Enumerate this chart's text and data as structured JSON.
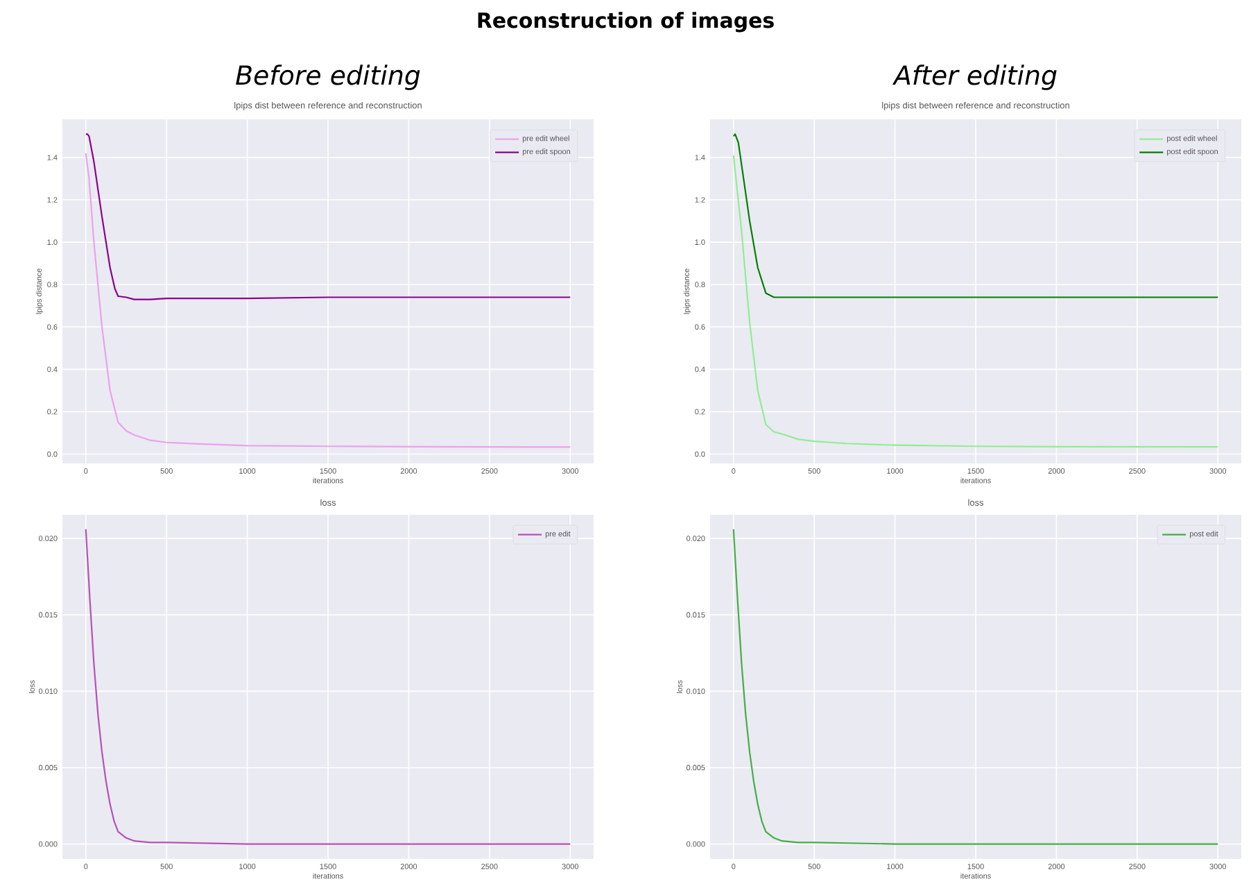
{
  "chart_data": [
    {
      "type": "line",
      "title": "lpips dist between reference and reconstruction",
      "xlabel": "iterations",
      "ylabel": "lpips distance",
      "annotations": [
        "Reconstruction of images",
        "Before editing"
      ],
      "grid": true,
      "legend": "top right",
      "xlim": [
        -145,
        3145
      ],
      "ylim": [
        -0.044,
        1.58
      ],
      "xticks": [
        0,
        500,
        1000,
        1500,
        2000,
        2500,
        3000
      ],
      "yticks": [
        {
          "value": 0,
          "label": "0.0"
        },
        {
          "value": 0.2,
          "label": "0.2"
        },
        {
          "value": 0.4,
          "label": "0.4"
        },
        {
          "value": 0.6,
          "label": "0.6"
        },
        {
          "value": 0.8,
          "label": "0.8"
        },
        {
          "value": 1.0,
          "label": "1.0"
        },
        {
          "value": 1.2,
          "label": "1.2"
        },
        {
          "value": 1.4,
          "label": "1.4"
        }
      ],
      "series": [
        {
          "name": "pre edit wheel",
          "color": "#eaa2ea",
          "x": [
            0,
            20,
            50,
            100,
            150,
            200,
            250,
            300,
            400,
            500,
            700,
            1000,
            1500,
            2000,
            2500,
            3000
          ],
          "values": [
            1.42,
            1.3,
            1.0,
            0.6,
            0.3,
            0.15,
            0.11,
            0.09,
            0.065,
            0.055,
            0.048,
            0.04,
            0.037,
            0.035,
            0.034,
            0.033
          ]
        },
        {
          "name": "pre edit spoon",
          "color": "#8b008b",
          "x": [
            0,
            10,
            20,
            50,
            100,
            150,
            180,
            200,
            250,
            300,
            400,
            500,
            1000,
            1500,
            2000,
            2500,
            3000
          ],
          "values": [
            1.51,
            1.51,
            1.5,
            1.38,
            1.12,
            0.88,
            0.78,
            0.745,
            0.74,
            0.73,
            0.73,
            0.735,
            0.735,
            0.74,
            0.74,
            0.74,
            0.74
          ]
        }
      ]
    },
    {
      "type": "line",
      "title": "lpips dist between reference and reconstruction",
      "xlabel": "iterations",
      "ylabel": "lpips distance",
      "annotations": [
        "After editing"
      ],
      "grid": true,
      "legend": "top right",
      "xlim": [
        -145,
        3145
      ],
      "ylim": [
        -0.044,
        1.58
      ],
      "xticks": [
        0,
        500,
        1000,
        1500,
        2000,
        2500,
        3000
      ],
      "yticks": [
        {
          "value": 0,
          "label": "0.0"
        },
        {
          "value": 0.2,
          "label": "0.2"
        },
        {
          "value": 0.4,
          "label": "0.4"
        },
        {
          "value": 0.6,
          "label": "0.6"
        },
        {
          "value": 0.8,
          "label": "0.8"
        },
        {
          "value": 1.0,
          "label": "1.0"
        },
        {
          "value": 1.2,
          "label": "1.2"
        },
        {
          "value": 1.4,
          "label": "1.4"
        }
      ],
      "series": [
        {
          "name": "post edit wheel",
          "color": "#90ee90",
          "x": [
            0,
            50,
            100,
            150,
            200,
            250,
            300,
            400,
            500,
            700,
            1000,
            1500,
            2000,
            3000
          ],
          "values": [
            1.41,
            1.05,
            0.62,
            0.3,
            0.14,
            0.105,
            0.095,
            0.07,
            0.06,
            0.05,
            0.042,
            0.037,
            0.035,
            0.034
          ]
        },
        {
          "name": "post edit spoon",
          "color": "#008000",
          "x": [
            0,
            10,
            30,
            100,
            150,
            200,
            250,
            500,
            1000,
            1500,
            2000,
            2500,
            3000
          ],
          "values": [
            1.5,
            1.51,
            1.47,
            1.1,
            0.88,
            0.76,
            0.74,
            0.74,
            0.74,
            0.74,
            0.74,
            0.74,
            0.74
          ]
        }
      ]
    },
    {
      "type": "line",
      "title": "loss",
      "xlabel": "iterations",
      "ylabel": "loss",
      "grid": true,
      "legend": "top right",
      "xlim": [
        -145,
        3145
      ],
      "ylim": [
        -0.00097,
        0.02155
      ],
      "xticks": [
        0,
        500,
        1000,
        1500,
        2000,
        2500,
        3000
      ],
      "yticks": [
        {
          "value": 0,
          "label": "0.000"
        },
        {
          "value": 0.005,
          "label": "0.005"
        },
        {
          "value": 0.01,
          "label": "0.010"
        },
        {
          "value": 0.015,
          "label": "0.015"
        },
        {
          "value": 0.02,
          "label": "0.020"
        }
      ],
      "series": [
        {
          "name": "pre edit",
          "color": "#b650b6",
          "x": [
            0,
            25,
            50,
            75,
            100,
            125,
            150,
            175,
            200,
            250,
            300,
            400,
            500,
            1000,
            3000
          ],
          "values": [
            0.0206,
            0.016,
            0.0118,
            0.0085,
            0.006,
            0.0041,
            0.0026,
            0.0015,
            0.0008,
            0.0004,
            0.0002,
            0.0001,
            0.0001,
            0,
            0
          ]
        }
      ]
    },
    {
      "type": "line",
      "title": "loss",
      "xlabel": "iterations",
      "ylabel": "loss",
      "grid": true,
      "legend": "top right",
      "xlim": [
        -145,
        3145
      ],
      "ylim": [
        -0.00097,
        0.02155
      ],
      "xticks": [
        0,
        500,
        1000,
        1500,
        2000,
        2500,
        3000
      ],
      "yticks": [
        {
          "value": 0,
          "label": "0.000"
        },
        {
          "value": 0.005,
          "label": "0.005"
        },
        {
          "value": 0.01,
          "label": "0.010"
        },
        {
          "value": 0.015,
          "label": "0.015"
        },
        {
          "value": 0.02,
          "label": "0.020"
        }
      ],
      "series": [
        {
          "name": "post edit",
          "color": "#45ad45",
          "x": [
            0,
            25,
            50,
            75,
            100,
            125,
            150,
            175,
            200,
            250,
            300,
            400,
            500,
            1000,
            3000
          ],
          "values": [
            0.0206,
            0.016,
            0.0118,
            0.0085,
            0.006,
            0.0041,
            0.0026,
            0.0015,
            0.0008,
            0.0004,
            0.0002,
            0.0001,
            0.0001,
            0,
            0
          ]
        }
      ]
    }
  ]
}
